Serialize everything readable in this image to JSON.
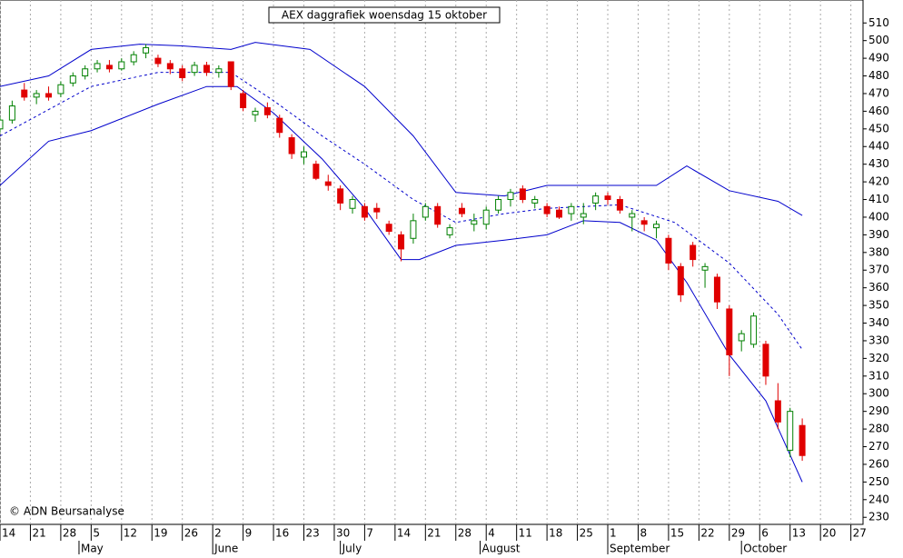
{
  "chart_data": {
    "type": "candlestick",
    "title": "AEX daggrafiek woensdag 15 oktober",
    "copyright": "© ADN Beursanalyse",
    "up_color": "#008000",
    "down_color": "#e00000",
    "band_color": "#0000cc",
    "grid": true,
    "ylim": [
      226,
      523
    ],
    "yticks": [
      230,
      240,
      250,
      260,
      270,
      280,
      290,
      300,
      310,
      320,
      330,
      340,
      350,
      360,
      370,
      380,
      390,
      400,
      410,
      420,
      430,
      440,
      450,
      460,
      470,
      480,
      490,
      500,
      510
    ],
    "xlim": [
      0,
      142
    ],
    "xticks": [
      {
        "value": 0,
        "label": "14"
      },
      {
        "value": 5,
        "label": "21"
      },
      {
        "value": 10,
        "label": "28"
      },
      {
        "value": 15,
        "label": "5"
      },
      {
        "value": 20,
        "label": "12"
      },
      {
        "value": 25,
        "label": "19"
      },
      {
        "value": 30,
        "label": "26"
      },
      {
        "value": 35,
        "label": "2"
      },
      {
        "value": 40,
        "label": "9"
      },
      {
        "value": 45,
        "label": "16"
      },
      {
        "value": 50,
        "label": "23"
      },
      {
        "value": 55,
        "label": "30"
      },
      {
        "value": 60,
        "label": "7"
      },
      {
        "value": 65,
        "label": "14"
      },
      {
        "value": 70,
        "label": "21"
      },
      {
        "value": 75,
        "label": "28"
      },
      {
        "value": 80,
        "label": "4"
      },
      {
        "value": 85,
        "label": "11"
      },
      {
        "value": 90,
        "label": "18"
      },
      {
        "value": 95,
        "label": "25"
      },
      {
        "value": 100,
        "label": "1"
      },
      {
        "value": 105,
        "label": "8"
      },
      {
        "value": 110,
        "label": "15"
      },
      {
        "value": 115,
        "label": "22"
      },
      {
        "value": 120,
        "label": "29"
      },
      {
        "value": 125,
        "label": "6"
      },
      {
        "value": 130,
        "label": "13"
      },
      {
        "value": 135,
        "label": "20"
      },
      {
        "value": 140,
        "label": "27"
      }
    ],
    "month_ticks": [
      {
        "value": 13,
        "label": "May"
      },
      {
        "value": 35,
        "label": "June"
      },
      {
        "value": 56,
        "label": "July"
      },
      {
        "value": 79,
        "label": "August"
      },
      {
        "value": 100,
        "label": "September"
      },
      {
        "value": 122,
        "label": "October"
      }
    ],
    "x": [
      0,
      2,
      4,
      6,
      8,
      10,
      12,
      14,
      16,
      18,
      20,
      22,
      24,
      26,
      28,
      30,
      32,
      34,
      36,
      38,
      40,
      42,
      44,
      46,
      48,
      50,
      52,
      54,
      56,
      58,
      60,
      62,
      64,
      66,
      68,
      70,
      72,
      74,
      76,
      78,
      80,
      82,
      84,
      86,
      88,
      90,
      92,
      94,
      96,
      98,
      100,
      102,
      104,
      106,
      108,
      110,
      112,
      114,
      116,
      118,
      120,
      122,
      124,
      126,
      128,
      130,
      132
    ],
    "open": [
      450,
      455,
      472,
      468,
      470,
      470,
      476,
      480,
      484,
      486,
      484,
      488,
      493,
      490,
      487,
      484,
      482,
      486,
      482,
      488,
      470,
      458,
      462,
      456,
      445,
      434,
      430,
      420,
      416,
      405,
      406,
      405,
      396,
      390,
      388,
      400,
      406,
      390,
      405,
      396,
      396,
      404,
      410,
      416,
      408,
      406,
      404,
      402,
      400,
      408,
      412,
      410,
      400,
      398,
      394,
      388,
      372,
      384,
      370,
      366,
      348,
      330,
      328,
      328,
      296,
      268,
      282
    ],
    "high": [
      457,
      466,
      476,
      472,
      474,
      477,
      482,
      486,
      489,
      489,
      490,
      494,
      498,
      492,
      489,
      486,
      488,
      488,
      486,
      488,
      472,
      462,
      465,
      458,
      447,
      440,
      432,
      424,
      418,
      412,
      408,
      408,
      398,
      392,
      402,
      408,
      408,
      396,
      408,
      402,
      406,
      412,
      416,
      418,
      412,
      408,
      406,
      408,
      408,
      414,
      414,
      412,
      404,
      400,
      398,
      390,
      374,
      386,
      374,
      368,
      350,
      336,
      346,
      330,
      306,
      292,
      286
    ],
    "low": [
      448,
      453,
      466,
      464,
      466,
      468,
      474,
      478,
      482,
      482,
      483,
      486,
      490,
      485,
      481,
      477,
      480,
      480,
      479,
      472,
      460,
      454,
      456,
      445,
      433,
      430,
      421,
      415,
      404,
      402,
      398,
      399,
      390,
      375,
      385,
      398,
      394,
      388,
      400,
      392,
      393,
      402,
      406,
      408,
      405,
      400,
      399,
      398,
      396,
      404,
      407,
      402,
      392,
      392,
      388,
      370,
      352,
      372,
      360,
      348,
      310,
      324,
      326,
      305,
      280,
      264,
      262
    ],
    "close": [
      455,
      463,
      468,
      470,
      468,
      475,
      480,
      484,
      487,
      484,
      488,
      492,
      496,
      487,
      484,
      479,
      486,
      482,
      484,
      474,
      462,
      460,
      458,
      448,
      436,
      437,
      422,
      418,
      408,
      410,
      400,
      403,
      392,
      382,
      398,
      406,
      396,
      394,
      402,
      398,
      404,
      410,
      414,
      410,
      410,
      402,
      400,
      406,
      402,
      412,
      410,
      404,
      402,
      396,
      396,
      374,
      356,
      376,
      372,
      352,
      322,
      334,
      344,
      310,
      284,
      290,
      265
    ],
    "bands": [
      {
        "x": [
          0,
          8,
          15,
          23,
          30,
          38,
          42,
          51,
          60,
          68,
          75,
          83,
          90,
          101,
          105,
          108,
          113,
          120,
          128,
          132
        ],
        "values": [
          474,
          480,
          495,
          498,
          497,
          495,
          499,
          495,
          474,
          446,
          414,
          412,
          418,
          418,
          418,
          418,
          429,
          415,
          409,
          401
        ]
      },
      {
        "x": [
          0,
          15,
          26,
          38,
          45,
          53,
          60,
          68,
          75,
          83,
          90,
          102,
          111,
          120,
          128,
          132
        ],
        "values": [
          446,
          474,
          482,
          482,
          466,
          446,
          430,
          410,
          397,
          402,
          405,
          407,
          397,
          374,
          345,
          325
        ],
        "dash": true
      },
      {
        "x": [
          0,
          8,
          15,
          26,
          34,
          39,
          45,
          53,
          60,
          66,
          69,
          75,
          83,
          90,
          96,
          102,
          108,
          113,
          120,
          126,
          132
        ],
        "values": [
          418,
          443,
          449,
          464,
          474,
          474,
          459,
          433,
          405,
          376,
          376,
          384,
          387,
          390,
          398,
          397,
          387,
          363,
          322,
          296,
          250
        ]
      }
    ]
  }
}
